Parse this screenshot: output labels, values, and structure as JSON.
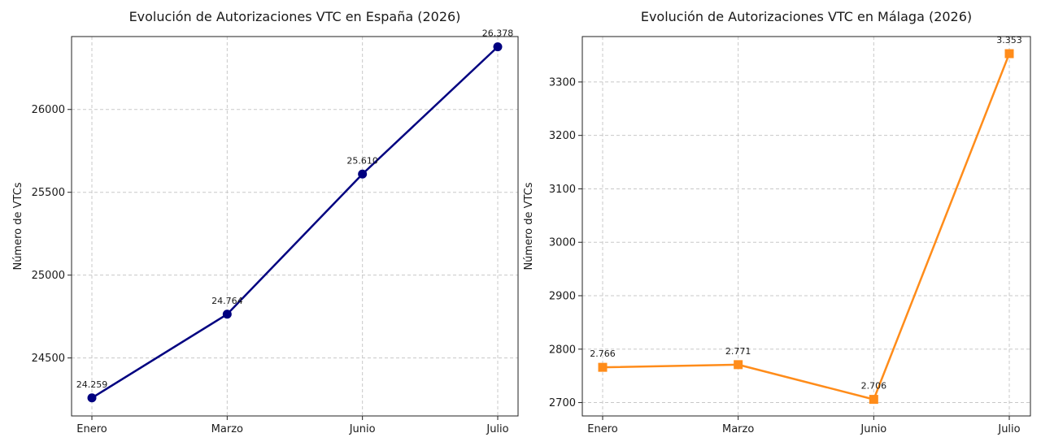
{
  "chart_data": [
    {
      "type": "line",
      "title": "Evolución de Autorizaciones VTC en España (2026)",
      "xlabel": "",
      "ylabel": "Número de VTCs",
      "categories": [
        "Enero",
        "Marzo",
        "Junio",
        "Julio"
      ],
      "series": [
        {
          "values": [
            24259,
            24764,
            25610,
            26378
          ],
          "labels": [
            "24.259",
            "24.764",
            "25.610",
            "26.378"
          ],
          "color": "#000080",
          "marker": "circle"
        }
      ],
      "ylim": [
        24150,
        26440
      ],
      "yticks": [
        24500,
        25000,
        25500,
        26000
      ],
      "grid": true
    },
    {
      "type": "line",
      "title": "Evolución de Autorizaciones VTC en Málaga (2026)",
      "xlabel": "",
      "ylabel": "Número de VTCs",
      "categories": [
        "Enero",
        "Marzo",
        "Junio",
        "Julio"
      ],
      "series": [
        {
          "values": [
            2766,
            2771,
            2706,
            3353
          ],
          "labels": [
            "2.766",
            "2.771",
            "2.706",
            "3.353"
          ],
          "color": "#ff8c1a",
          "marker": "square"
        }
      ],
      "ylim": [
        2675,
        3385
      ],
      "yticks": [
        2700,
        2800,
        2900,
        3000,
        3100,
        3200,
        3300
      ],
      "grid": true
    }
  ]
}
